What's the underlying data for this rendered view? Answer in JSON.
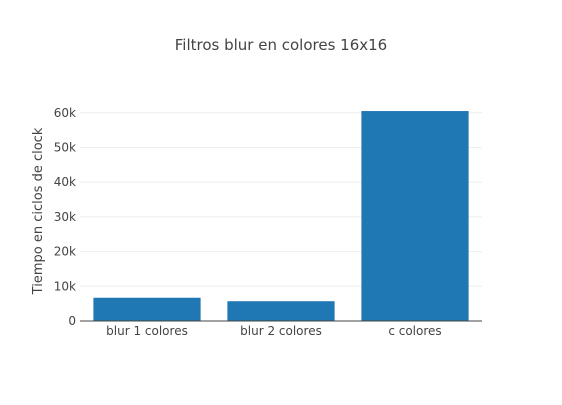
{
  "chart_data": {
    "type": "bar",
    "title": "Filtros blur en colores 16x16",
    "xlabel": "",
    "ylabel": "Tiempo en ciclos de clock",
    "categories": [
      "blur 1 colores",
      "blur 2 colores",
      "c colores"
    ],
    "values": [
      6700,
      5700,
      60500
    ],
    "ylim": [
      0,
      63684
    ],
    "yticks": [
      0,
      10000,
      20000,
      30000,
      40000,
      50000,
      60000
    ],
    "ytick_labels": [
      "0",
      "10k",
      "20k",
      "30k",
      "40k",
      "50k",
      "60k"
    ],
    "grid": true,
    "legend": "none",
    "colors": {
      "bar": "#1f77b4",
      "grid": "#eeeeee",
      "axis": "#444444",
      "text": "#444444"
    }
  }
}
